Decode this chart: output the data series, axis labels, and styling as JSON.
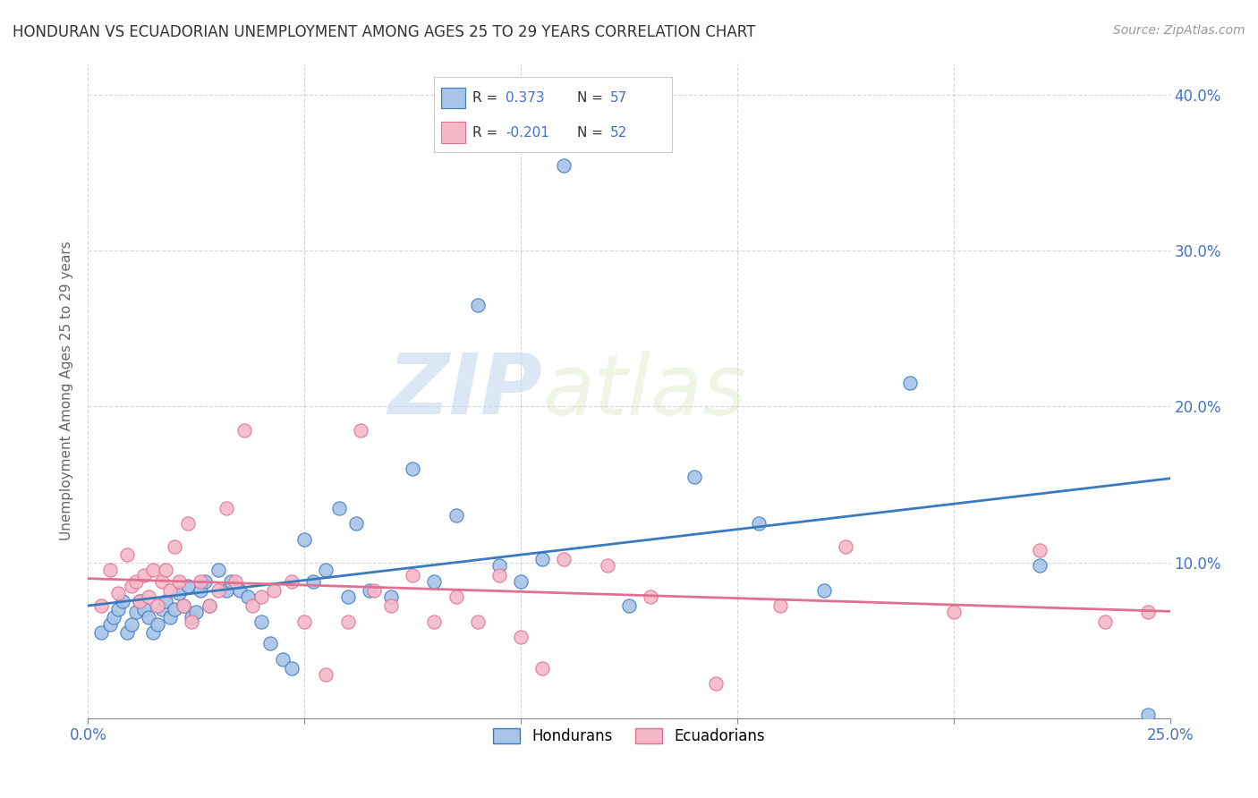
{
  "title": "HONDURAN VS ECUADORIAN UNEMPLOYMENT AMONG AGES 25 TO 29 YEARS CORRELATION CHART",
  "source": "Source: ZipAtlas.com",
  "ylabel": "Unemployment Among Ages 25 to 29 years",
  "xlim": [
    0.0,
    0.25
  ],
  "ylim": [
    0.0,
    0.42
  ],
  "xticks": [
    0.0,
    0.05,
    0.1,
    0.15,
    0.2,
    0.25
  ],
  "yticks": [
    0.0,
    0.1,
    0.2,
    0.3,
    0.4
  ],
  "honduran_color": "#a8c4e8",
  "ecuadorian_color": "#f5b8c8",
  "honduran_line_color": "#3a7abf",
  "ecuadorian_line_color": "#e07090",
  "R_honduran": "0.373",
  "N_honduran": "57",
  "R_ecuadorian": "-0.201",
  "N_ecuadorian": "52",
  "watermark_zip": "ZIP",
  "watermark_atlas": "atlas",
  "background_color": "#ffffff",
  "grid_color": "#cccccc",
  "title_color": "#333333",
  "axis_label_color": "#4472c4",
  "hondurans_scatter_x": [
    0.003,
    0.005,
    0.006,
    0.007,
    0.008,
    0.009,
    0.01,
    0.011,
    0.012,
    0.013,
    0.014,
    0.015,
    0.016,
    0.017,
    0.018,
    0.019,
    0.02,
    0.021,
    0.022,
    0.023,
    0.024,
    0.025,
    0.026,
    0.027,
    0.028,
    0.03,
    0.032,
    0.033,
    0.035,
    0.037,
    0.04,
    0.042,
    0.045,
    0.047,
    0.05,
    0.052,
    0.055,
    0.058,
    0.06,
    0.062,
    0.065,
    0.07,
    0.075,
    0.08,
    0.085,
    0.09,
    0.095,
    0.1,
    0.105,
    0.11,
    0.125,
    0.14,
    0.155,
    0.17,
    0.19,
    0.22,
    0.245
  ],
  "hondurans_scatter_y": [
    0.055,
    0.06,
    0.065,
    0.07,
    0.075,
    0.055,
    0.06,
    0.068,
    0.075,
    0.07,
    0.065,
    0.055,
    0.06,
    0.07,
    0.075,
    0.065,
    0.07,
    0.08,
    0.072,
    0.085,
    0.065,
    0.068,
    0.082,
    0.088,
    0.072,
    0.095,
    0.082,
    0.088,
    0.082,
    0.078,
    0.062,
    0.048,
    0.038,
    0.032,
    0.115,
    0.088,
    0.095,
    0.135,
    0.078,
    0.125,
    0.082,
    0.078,
    0.16,
    0.088,
    0.13,
    0.265,
    0.098,
    0.088,
    0.102,
    0.355,
    0.072,
    0.155,
    0.125,
    0.082,
    0.215,
    0.098,
    0.002
  ],
  "ecuadorians_scatter_x": [
    0.003,
    0.005,
    0.007,
    0.009,
    0.01,
    0.011,
    0.012,
    0.013,
    0.014,
    0.015,
    0.016,
    0.017,
    0.018,
    0.019,
    0.02,
    0.021,
    0.022,
    0.023,
    0.024,
    0.026,
    0.028,
    0.03,
    0.032,
    0.034,
    0.036,
    0.038,
    0.04,
    0.043,
    0.047,
    0.05,
    0.055,
    0.06,
    0.063,
    0.066,
    0.07,
    0.075,
    0.08,
    0.085,
    0.09,
    0.095,
    0.1,
    0.105,
    0.11,
    0.12,
    0.13,
    0.145,
    0.16,
    0.175,
    0.2,
    0.22,
    0.235,
    0.245
  ],
  "ecuadorians_scatter_y": [
    0.072,
    0.095,
    0.08,
    0.105,
    0.085,
    0.088,
    0.075,
    0.092,
    0.078,
    0.095,
    0.072,
    0.088,
    0.095,
    0.082,
    0.11,
    0.088,
    0.072,
    0.125,
    0.062,
    0.088,
    0.072,
    0.082,
    0.135,
    0.088,
    0.185,
    0.072,
    0.078,
    0.082,
    0.088,
    0.062,
    0.028,
    0.062,
    0.185,
    0.082,
    0.072,
    0.092,
    0.062,
    0.078,
    0.062,
    0.092,
    0.052,
    0.032,
    0.102,
    0.098,
    0.078,
    0.022,
    0.072,
    0.11,
    0.068,
    0.108,
    0.062,
    0.068
  ]
}
